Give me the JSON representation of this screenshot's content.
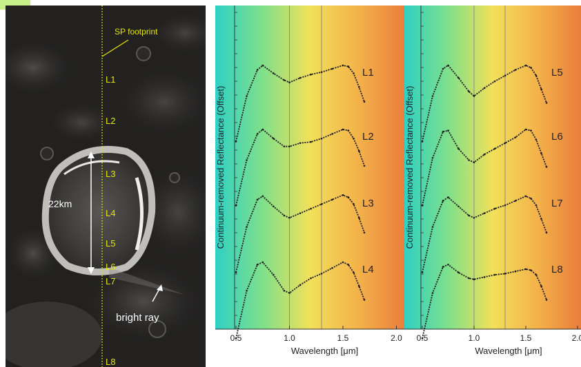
{
  "image": {
    "sp_label": "SP footprint",
    "scale_label": "22km",
    "ray_label": "bright ray",
    "points": [
      "L1",
      "L2",
      "L3",
      "L4",
      "L5",
      "L6",
      "L7",
      "L8"
    ]
  },
  "colors": {
    "label_yellow": "#e6e600",
    "spectrum_line": "#1a1a1a",
    "gradient_stops": [
      "#2fd0c4",
      "#7fe08a",
      "#f2e05a",
      "#f3b34a",
      "#ea7d3b"
    ]
  },
  "chart_data": [
    {
      "type": "line",
      "xlabel": "Wavelength [μm]",
      "ylabel": "Continuum-removed Reflectance (Offset)",
      "xlim": [
        0.5,
        2.0
      ],
      "xticks": [
        "0.5",
        "1.0",
        "1.5",
        "2.0"
      ],
      "vertical_lines": [
        1.0,
        1.3
      ],
      "series": [
        {
          "name": "L1",
          "x": [
            0.5,
            0.6,
            0.7,
            0.75,
            0.85,
            0.95,
            1.0,
            1.1,
            1.2,
            1.3,
            1.4,
            1.5,
            1.55,
            1.6,
            1.65,
            1.7
          ],
          "y": [
            0.3,
            0.7,
            0.93,
            0.97,
            0.9,
            0.84,
            0.82,
            0.86,
            0.89,
            0.91,
            0.94,
            0.97,
            0.96,
            0.9,
            0.78,
            0.65
          ]
        },
        {
          "name": "L2",
          "x": [
            0.5,
            0.6,
            0.7,
            0.75,
            0.85,
            0.95,
            1.0,
            1.1,
            1.2,
            1.3,
            1.4,
            1.5,
            1.55,
            1.6,
            1.65,
            1.7
          ],
          "y": [
            0.3,
            0.7,
            0.93,
            0.97,
            0.89,
            0.82,
            0.82,
            0.85,
            0.86,
            0.89,
            0.93,
            0.97,
            0.96,
            0.89,
            0.78,
            0.65
          ]
        },
        {
          "name": "L3",
          "x": [
            0.5,
            0.6,
            0.7,
            0.75,
            0.85,
            0.95,
            1.0,
            1.1,
            1.2,
            1.3,
            1.4,
            1.5,
            1.55,
            1.6,
            1.65,
            1.7
          ],
          "y": [
            0.3,
            0.7,
            0.94,
            0.97,
            0.88,
            0.8,
            0.78,
            0.82,
            0.86,
            0.9,
            0.94,
            0.98,
            0.96,
            0.9,
            0.78,
            0.65
          ]
        },
        {
          "name": "L4",
          "x": [
            0.5,
            0.6,
            0.7,
            0.75,
            0.85,
            0.95,
            1.0,
            1.1,
            1.2,
            1.3,
            1.4,
            1.5,
            1.55,
            1.6,
            1.65,
            1.7
          ],
          "y": [
            0.3,
            0.72,
            0.95,
            0.97,
            0.86,
            0.72,
            0.7,
            0.77,
            0.83,
            0.87,
            0.92,
            0.97,
            0.95,
            0.88,
            0.76,
            0.64
          ]
        }
      ]
    },
    {
      "type": "line",
      "xlabel": "Wavelength [μm]",
      "ylabel": "Continuum-removed Reflectance (Offset)",
      "xlim": [
        0.5,
        2.0
      ],
      "xticks": [
        "0.5",
        "1.0",
        "1.5",
        "2.0"
      ],
      "vertical_lines": [
        1.0,
        1.3
      ],
      "series": [
        {
          "name": "L5",
          "x": [
            0.5,
            0.6,
            0.7,
            0.75,
            0.85,
            0.95,
            1.0,
            1.1,
            1.2,
            1.3,
            1.4,
            1.5,
            1.55,
            1.6,
            1.65,
            1.7
          ],
          "y": [
            0.3,
            0.7,
            0.94,
            0.97,
            0.86,
            0.74,
            0.7,
            0.77,
            0.83,
            0.88,
            0.93,
            0.97,
            0.95,
            0.88,
            0.76,
            0.64
          ]
        },
        {
          "name": "L6",
          "x": [
            0.5,
            0.6,
            0.7,
            0.75,
            0.85,
            0.95,
            1.0,
            1.1,
            1.2,
            1.3,
            1.4,
            1.5,
            1.55,
            1.6,
            1.65,
            1.7
          ],
          "y": [
            0.3,
            0.72,
            0.95,
            0.96,
            0.8,
            0.7,
            0.68,
            0.75,
            0.8,
            0.85,
            0.9,
            0.97,
            0.96,
            0.88,
            0.76,
            0.64
          ]
        },
        {
          "name": "L7",
          "x": [
            0.5,
            0.6,
            0.7,
            0.75,
            0.85,
            0.95,
            1.0,
            1.1,
            1.2,
            1.3,
            1.4,
            1.5,
            1.55,
            1.6,
            1.65,
            1.7
          ],
          "y": [
            0.3,
            0.7,
            0.93,
            0.96,
            0.88,
            0.8,
            0.78,
            0.82,
            0.86,
            0.89,
            0.93,
            0.97,
            0.95,
            0.89,
            0.77,
            0.65
          ]
        },
        {
          "name": "L8",
          "x": [
            0.5,
            0.6,
            0.7,
            0.75,
            0.85,
            0.95,
            1.0,
            1.1,
            1.2,
            1.3,
            1.4,
            1.5,
            1.55,
            1.6,
            1.65,
            1.7
          ],
          "y": [
            0.3,
            0.7,
            0.93,
            0.95,
            0.88,
            0.83,
            0.82,
            0.84,
            0.86,
            0.87,
            0.89,
            0.91,
            0.9,
            0.86,
            0.76,
            0.64
          ]
        }
      ]
    }
  ]
}
